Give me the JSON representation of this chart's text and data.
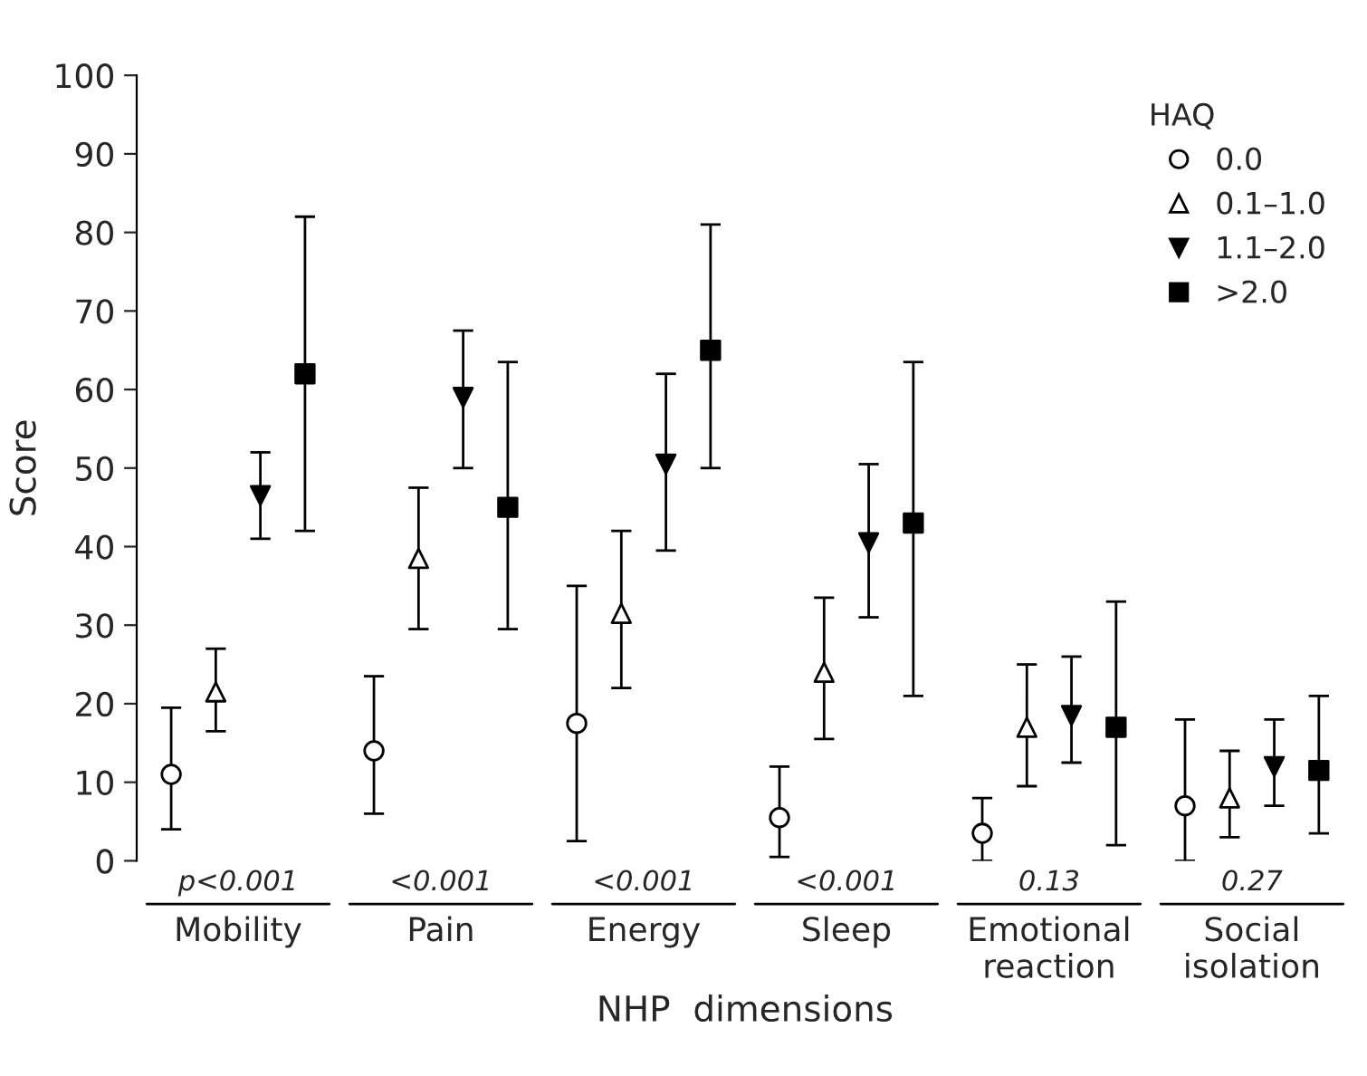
{
  "chart_data": {
    "type": "scatter",
    "xlabel": "NHP  dimensions",
    "ylabel": "Score",
    "legend_title": "HAQ",
    "categories": [
      "Mobility",
      "Pain",
      "Energy",
      "Sleep",
      "Emotional\nreaction",
      "Social\nisolation"
    ],
    "series": [
      {
        "name": "0.0",
        "color": "#ffffff",
        "marker": "circle",
        "values": [
          11,
          14,
          17.5,
          5.5,
          3.5,
          7
        ],
        "errors": [
          [
            4,
            19.5
          ],
          [
            6,
            23.5
          ],
          [
            2.5,
            35
          ],
          [
            0.5,
            12
          ],
          [
            0,
            8
          ],
          [
            0,
            18
          ]
        ]
      },
      {
        "name": "0.1–1.0",
        "color": "#ffffff",
        "marker": "triangle",
        "values": [
          21.5,
          38.5,
          31.5,
          24,
          17,
          8
        ],
        "errors": [
          [
            16.5,
            27
          ],
          [
            29.5,
            47.5
          ],
          [
            22,
            42
          ],
          [
            15.5,
            33.5
          ],
          [
            9.5,
            25
          ],
          [
            3,
            14
          ]
        ]
      },
      {
        "name": "1.1–2.0",
        "color": "#000000",
        "marker": "triangle_down",
        "values": [
          46.5,
          59,
          50.5,
          40.5,
          18.5,
          12
        ],
        "errors": [
          [
            41,
            52
          ],
          [
            50,
            67.5
          ],
          [
            39.5,
            62
          ],
          [
            31,
            50.5
          ],
          [
            12.5,
            26
          ],
          [
            7,
            18
          ]
        ]
      },
      {
        "name": ">2.0",
        "color": "#000000",
        "marker": "square",
        "values": [
          62,
          45,
          65,
          43,
          17,
          11.5
        ],
        "errors": [
          [
            42,
            82
          ],
          [
            29.5,
            63.5
          ],
          [
            50,
            81
          ],
          [
            21,
            63.5
          ],
          [
            2,
            33
          ],
          [
            3.5,
            21
          ]
        ]
      }
    ],
    "annotations": [
      "p<0.001",
      "<0.001",
      "<0.001",
      "<0.001",
      "0.13",
      "0.27"
    ],
    "ylim": [
      0,
      100
    ],
    "yticks": [
      0,
      10,
      20,
      30,
      40,
      50,
      60,
      70,
      80,
      90,
      100
    ],
    "grid": false,
    "legend": "top right"
  }
}
